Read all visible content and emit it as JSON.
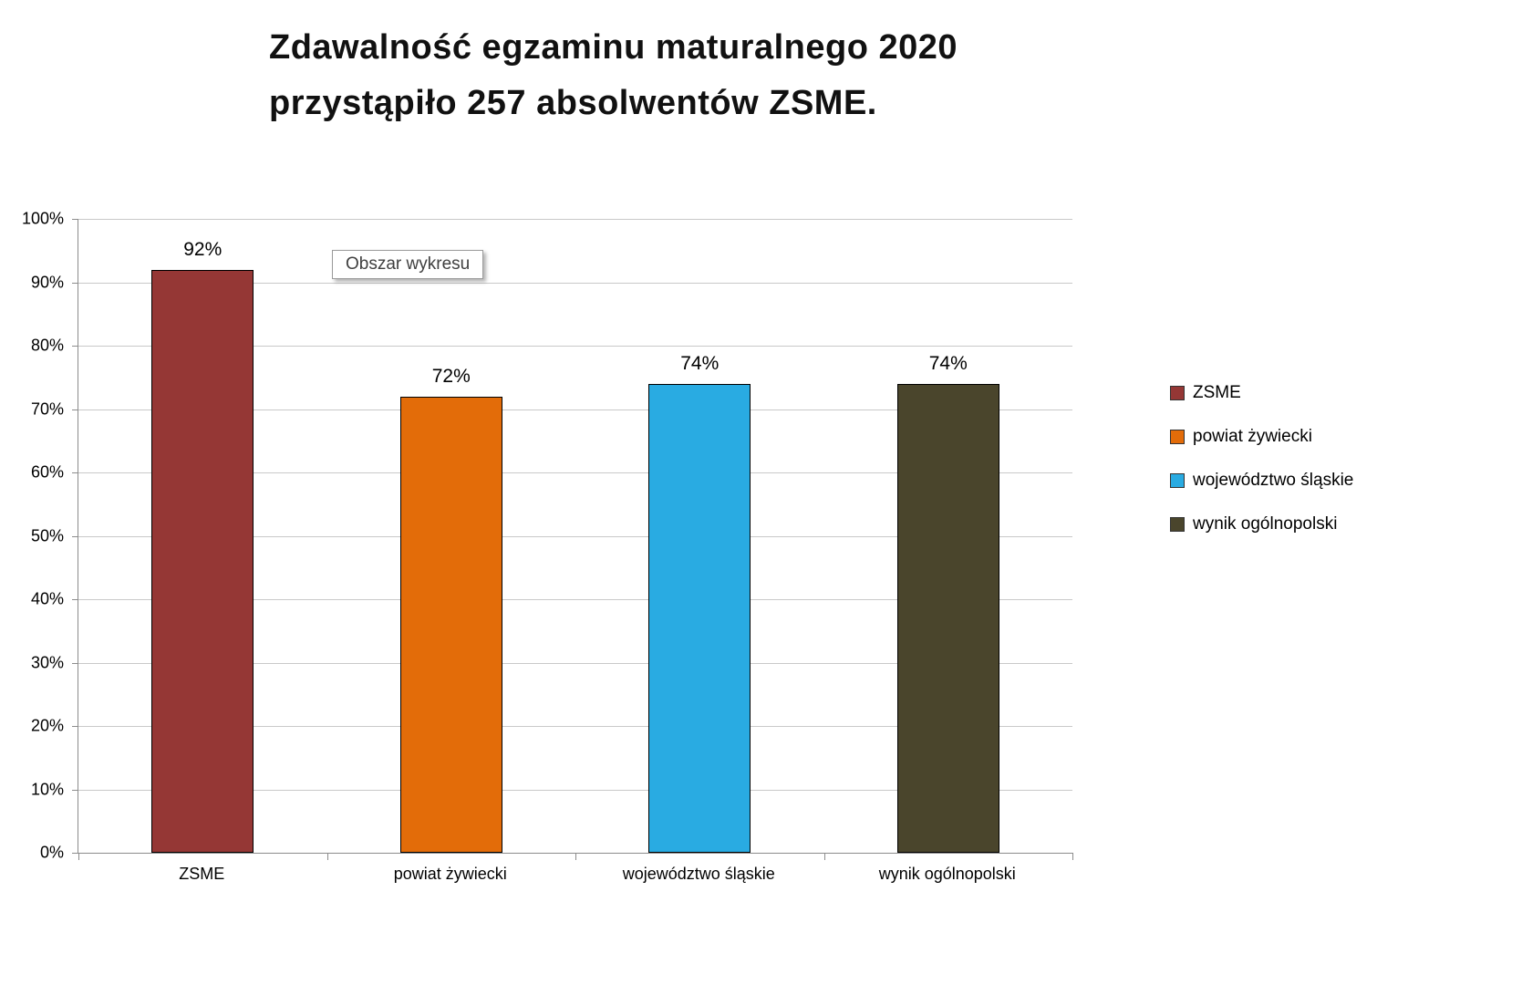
{
  "title": {
    "line1": "Zdawalność  egzaminu maturalnego 2020",
    "line2": "przystąpiło 257 absolwentów ZSME."
  },
  "tooltip_label": "Obszar wykresu",
  "chart_data": {
    "type": "bar",
    "title": "Zdawalność egzaminu maturalnego 2020 przystąpiło 257 absolwentów ZSME.",
    "categories": [
      "ZSME",
      "powiat żywiecki",
      "województwo śląskie",
      "wynik ogólnopolski"
    ],
    "values": [
      92,
      72,
      74,
      74
    ],
    "value_labels": [
      "92%",
      "72%",
      "74%",
      "74%"
    ],
    "colors": [
      "#953735",
      "#E36C09",
      "#29ABE2",
      "#4A452C"
    ],
    "ylim": [
      0,
      100
    ],
    "grid": true,
    "legend_position": "right",
    "yticks": [
      {
        "value": 0,
        "label": "0%"
      },
      {
        "value": 10,
        "label": "10%"
      },
      {
        "value": 20,
        "label": "20%"
      },
      {
        "value": 30,
        "label": "30%"
      },
      {
        "value": 40,
        "label": "40%"
      },
      {
        "value": 50,
        "label": "50%"
      },
      {
        "value": 60,
        "label": "60%"
      },
      {
        "value": 70,
        "label": "70%"
      },
      {
        "value": 80,
        "label": "80%"
      },
      {
        "value": 90,
        "label": "90%"
      },
      {
        "value": 100,
        "label": "100%"
      }
    ],
    "legend": [
      {
        "label": "ZSME",
        "color": "#953735"
      },
      {
        "label": "powiat żywiecki",
        "color": "#E36C09"
      },
      {
        "label": "województwo śląskie",
        "color": "#29ABE2"
      },
      {
        "label": "wynik ogólnopolski",
        "color": "#4A452C"
      }
    ]
  }
}
